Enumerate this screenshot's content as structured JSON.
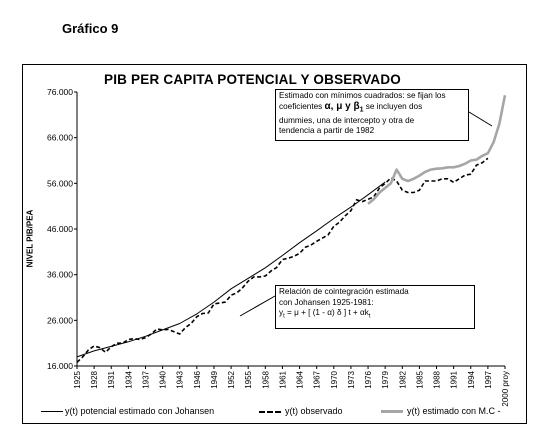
{
  "header": {
    "label": "Gráfico 9"
  },
  "chart_data": {
    "type": "line",
    "title": "PIB PER CAPITA POTENCIAL Y OBSERVADO",
    "ylabel": "NIVEL PIB/PEA",
    "ylim": [
      16000,
      76000
    ],
    "yticks": [
      "16.000",
      "26.000",
      "36.000",
      "46.000",
      "56.000",
      "66.000",
      "76.000"
    ],
    "xticks": [
      "1925",
      "1928",
      "1931",
      "1934",
      "1937",
      "1940",
      "1943",
      "1946",
      "1949",
      "1952",
      "1955",
      "1958",
      "1961",
      "1964",
      "1967",
      "1970",
      "1973",
      "1976",
      "1979",
      "1982",
      "1985",
      "1988",
      "1991",
      "1994",
      "1997",
      "2000 proy"
    ],
    "xlim": [
      1925,
      2000
    ],
    "series": [
      {
        "name": "y(t) potencial estimado con Johansen",
        "style": "solid-thin",
        "color": "#000000",
        "x": [
          1925,
          1928,
          1931,
          1934,
          1937,
          1940,
          1943,
          1946,
          1949,
          1952,
          1955,
          1958,
          1961,
          1964,
          1967,
          1970,
          1973,
          1976,
          1979
        ],
        "values": [
          18000,
          19300,
          20300,
          21300,
          22500,
          23900,
          25300,
          27400,
          30000,
          32900,
          35200,
          37500,
          40200,
          43000,
          45600,
          48300,
          50800,
          53500,
          56300
        ]
      },
      {
        "name": "y(t) observado",
        "style": "dashed",
        "color": "#000000",
        "x": [
          1925,
          1926,
          1927,
          1928,
          1929,
          1930,
          1931,
          1932,
          1933,
          1934,
          1935,
          1936,
          1937,
          1938,
          1939,
          1940,
          1941,
          1942,
          1943,
          1944,
          1945,
          1946,
          1947,
          1948,
          1949,
          1950,
          1951,
          1952,
          1953,
          1954,
          1955,
          1956,
          1957,
          1958,
          1959,
          1960,
          1961,
          1962,
          1963,
          1964,
          1965,
          1966,
          1967,
          1968,
          1969,
          1970,
          1971,
          1972,
          1973,
          1974,
          1975,
          1976,
          1977,
          1978,
          1979,
          1980,
          1981,
          1982,
          1983,
          1984,
          1985,
          1986,
          1987,
          1988,
          1989,
          1990,
          1991,
          1992,
          1993,
          1994,
          1995,
          1996,
          1997
        ],
        "values": [
          16800,
          18000,
          19500,
          20400,
          20000,
          19000,
          20200,
          21000,
          21000,
          21800,
          22000,
          21800,
          22200,
          23000,
          24100,
          23900,
          24000,
          23500,
          23000,
          24400,
          25300,
          26800,
          27500,
          27600,
          29600,
          29800,
          30000,
          31500,
          32000,
          33100,
          34600,
          35500,
          35500,
          35700,
          36800,
          37600,
          39300,
          39600,
          40000,
          40700,
          42000,
          42500,
          43300,
          44000,
          44700,
          46600,
          47500,
          48900,
          50000,
          52400,
          52000,
          52500,
          53000,
          55000,
          56000,
          57200,
          56500,
          54500,
          54000,
          54000,
          54500,
          56500,
          56500,
          56500,
          57000,
          57000,
          56200,
          57000,
          57800,
          58000,
          60000,
          60500,
          61500
        ]
      },
      {
        "name": "y(t)  estimado con M.C -",
        "style": "solid-thick",
        "color": "#a6a6a6",
        "x": [
          1976,
          1977,
          1978,
          1979,
          1980,
          1981,
          1982,
          1983,
          1984,
          1985,
          1986,
          1987,
          1988,
          1989,
          1990,
          1991,
          1992,
          1993,
          1994,
          1995,
          1996,
          1997,
          1998,
          1999,
          2000
        ],
        "values": [
          51500,
          52500,
          54000,
          55000,
          56000,
          59000,
          57000,
          56500,
          57000,
          57700,
          58500,
          59000,
          59200,
          59300,
          59500,
          59500,
          59800,
          60300,
          61000,
          61200,
          62000,
          62600,
          65000,
          69000,
          75300
        ]
      }
    ],
    "annotations": [
      {
        "id": "mc-note",
        "lines": [
          "Estimado con mínimos cuadrados: se fijan los",
          "coeficientes",
          "α, μ  y  β",
          "1",
          " se incluyen dos",
          "dummies, una de intercepto y otra de",
          "tendencia a partir de 1982"
        ]
      },
      {
        "id": "johansen-note",
        "lines": [
          "Relación de cointegración estimada",
          "con Johansen 1925-1981:",
          "y",
          "t",
          " = μ  + [ (1 - α) δ ] t  +   αk",
          "t"
        ]
      }
    ],
    "grid": false,
    "legend": "bottom"
  }
}
